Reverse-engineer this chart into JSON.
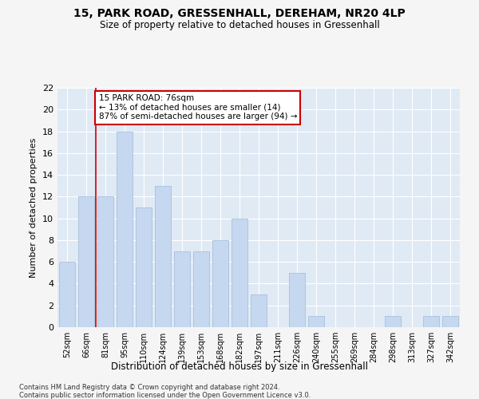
{
  "title1": "15, PARK ROAD, GRESSENHALL, DEREHAM, NR20 4LP",
  "title2": "Size of property relative to detached houses in Gressenhall",
  "xlabel": "Distribution of detached houses by size in Gressenhall",
  "ylabel": "Number of detached properties",
  "categories": [
    "52sqm",
    "66sqm",
    "81sqm",
    "95sqm",
    "110sqm",
    "124sqm",
    "139sqm",
    "153sqm",
    "168sqm",
    "182sqm",
    "197sqm",
    "211sqm",
    "226sqm",
    "240sqm",
    "255sqm",
    "269sqm",
    "284sqm",
    "298sqm",
    "313sqm",
    "327sqm",
    "342sqm"
  ],
  "values": [
    6,
    12,
    12,
    18,
    11,
    13,
    7,
    7,
    8,
    10,
    3,
    0,
    5,
    1,
    0,
    0,
    0,
    1,
    0,
    1,
    1
  ],
  "bar_color": "#c5d8f0",
  "bar_edgecolor": "#a0b8d8",
  "background_color": "#e0eaf5",
  "grid_color": "#ffffff",
  "annotation_box_text": "15 PARK ROAD: 76sqm\n← 13% of detached houses are smaller (14)\n87% of semi-detached houses are larger (94) →",
  "annotation_box_color": "#ffffff",
  "annotation_box_edgecolor": "#cc0000",
  "red_line_x": 1.5,
  "ylim": [
    0,
    22
  ],
  "yticks": [
    0,
    2,
    4,
    6,
    8,
    10,
    12,
    14,
    16,
    18,
    20,
    22
  ],
  "footnote1": "Contains HM Land Registry data © Crown copyright and database right 2024.",
  "footnote2": "Contains public sector information licensed under the Open Government Licence v3.0."
}
